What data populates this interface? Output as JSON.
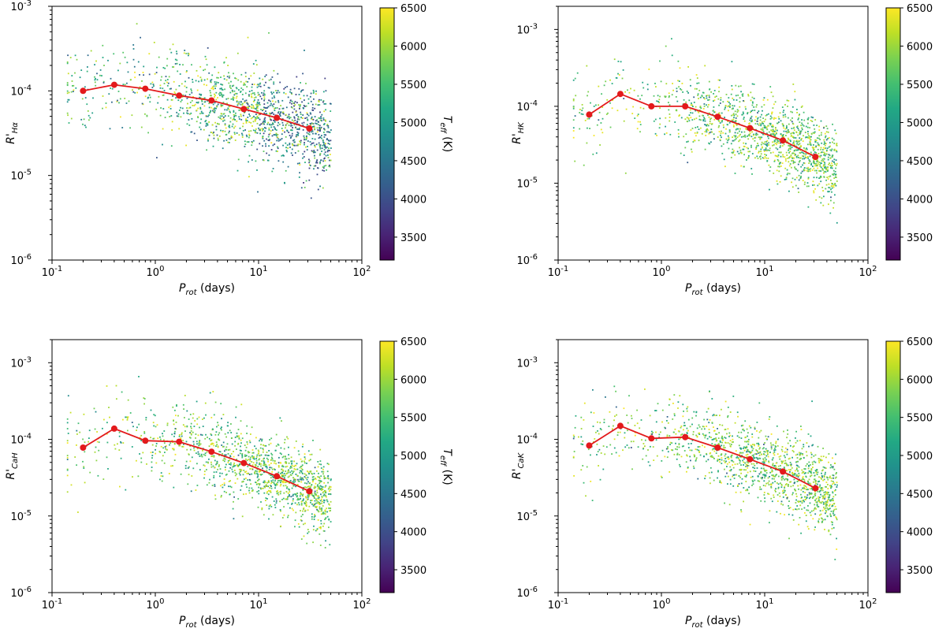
{
  "colorbar": {
    "label": "T_eff (K)",
    "min": 3200,
    "max": 6500,
    "ticks": [
      3500,
      4000,
      4500,
      5000,
      5500,
      6000,
      6500
    ],
    "colormap": "viridis"
  },
  "chart_data": [
    {
      "type": "scatter",
      "xlabel": "P_rot (days)",
      "ylabel": "R'_Hα",
      "xlim": [
        0.1,
        100
      ],
      "ylim": [
        1e-06,
        0.001
      ],
      "xscale": "log",
      "yscale": "log",
      "xticks": [
        "10^-1",
        "10^0",
        "10^1",
        "10^2"
      ],
      "yticks": [
        "10^-6",
        "10^-5",
        "10^-4",
        "10^-3"
      ],
      "line_color": "#e31a1c",
      "series": [
        {
          "x": [
            0.2,
            0.4,
            0.8,
            1.7,
            3.5,
            7.2,
            15,
            31
          ],
          "values": [
            0.0001,
            0.000118,
            0.000106,
            8.8e-05,
            7.7e-05,
            6.1e-05,
            4.8e-05,
            3.6e-05
          ]
        }
      ],
      "cloud": {
        "cool_fraction": 0.25,
        "bias": "cool at long periods"
      }
    },
    {
      "type": "scatter",
      "xlabel": "P_rot (days)",
      "ylabel": "R'_HK",
      "xlim": [
        0.1,
        100
      ],
      "ylim": [
        1e-06,
        0.002
      ],
      "xscale": "log",
      "yscale": "log",
      "xticks": [
        "10^-1",
        "10^0",
        "10^1",
        "10^2"
      ],
      "yticks": [
        "10^-6",
        "10^-5",
        "10^-4",
        "10^-3"
      ],
      "line_color": "#e31a1c",
      "series": [
        {
          "x": [
            0.2,
            0.4,
            0.8,
            1.7,
            3.5,
            7.2,
            15,
            31
          ],
          "values": [
            7.8e-05,
            0.000145,
            0.0001,
            0.0001,
            7.3e-05,
            5.2e-05,
            3.6e-05,
            2.2e-05
          ]
        }
      ],
      "cloud": {
        "cool_fraction": 0.06,
        "bias": "warm"
      }
    },
    {
      "type": "scatter",
      "xlabel": "P_rot (days)",
      "ylabel": "R'_CaH",
      "xlim": [
        0.1,
        100
      ],
      "ylim": [
        1e-06,
        0.002
      ],
      "xscale": "log",
      "yscale": "log",
      "xticks": [
        "10^-1",
        "10^0",
        "10^1",
        "10^2"
      ],
      "yticks": [
        "10^-6",
        "10^-5",
        "10^-4",
        "10^-3"
      ],
      "line_color": "#e31a1c",
      "series": [
        {
          "x": [
            0.2,
            0.4,
            0.8,
            1.7,
            3.5,
            7.2,
            15,
            31
          ],
          "values": [
            7.8e-05,
            0.000138,
            9.6e-05,
            9.3e-05,
            6.9e-05,
            4.9e-05,
            3.3e-05,
            2.1e-05
          ]
        }
      ],
      "cloud": {
        "cool_fraction": 0.06,
        "bias": "warm"
      }
    },
    {
      "type": "scatter",
      "xlabel": "P_rot (days)",
      "ylabel": "R'_CaK",
      "xlim": [
        0.1,
        100
      ],
      "ylim": [
        1e-06,
        0.002
      ],
      "xscale": "log",
      "yscale": "log",
      "xticks": [
        "10^-1",
        "10^0",
        "10^1",
        "10^2"
      ],
      "yticks": [
        "10^-6",
        "10^-5",
        "10^-4",
        "10^-3"
      ],
      "line_color": "#e31a1c",
      "series": [
        {
          "x": [
            0.2,
            0.4,
            0.8,
            1.7,
            3.5,
            7.2,
            15,
            31
          ],
          "values": [
            8.3e-05,
            0.00015,
            0.000103,
            0.000107,
            7.8e-05,
            5.5e-05,
            3.8e-05,
            2.3e-05
          ]
        }
      ],
      "cloud": {
        "cool_fraction": 0.06,
        "bias": "warm"
      }
    }
  ]
}
